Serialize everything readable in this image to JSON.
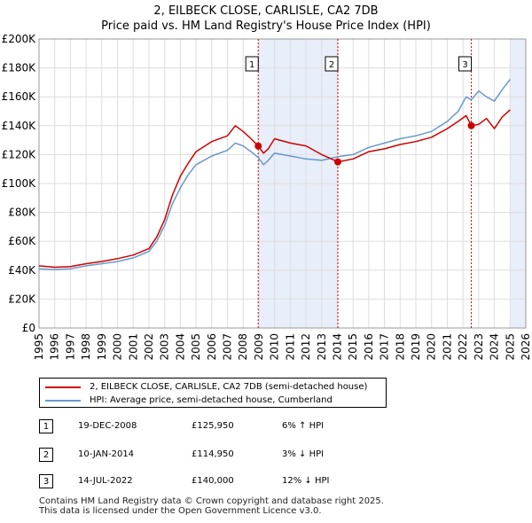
{
  "title_line1": "2, EILBECK CLOSE, CARLISLE, CA2 7DB",
  "title_line2": "Price paid vs. HM Land Registry's House Price Index (HPI)",
  "chart_data": {
    "type": "line",
    "x_ticks": [
      "1995",
      "1996",
      "1997",
      "1998",
      "1999",
      "2000",
      "2001",
      "2002",
      "2003",
      "2004",
      "2005",
      "2006",
      "2007",
      "2008",
      "2009",
      "2010",
      "2011",
      "2012",
      "2013",
      "2014",
      "2015",
      "2016",
      "2017",
      "2018",
      "2019",
      "2020",
      "2021",
      "2022",
      "2023",
      "2024",
      "2025",
      "2026"
    ],
    "y_ticks": [
      "£0",
      "£20K",
      "£40K",
      "£60K",
      "£80K",
      "£100K",
      "£120K",
      "£140K",
      "£160K",
      "£180K",
      "£200K"
    ],
    "ylim": [
      0,
      200000
    ],
    "xlim": [
      1995,
      2026
    ],
    "series": [
      {
        "name": "2, EILBECK CLOSE, CARLISLE, CA2 7DB (semi-detached house)",
        "color": "#cc0000",
        "points": [
          [
            1995.0,
            43000
          ],
          [
            1996.0,
            42000
          ],
          [
            1997.0,
            42500
          ],
          [
            1998.0,
            44500
          ],
          [
            1999.0,
            46000
          ],
          [
            2000.0,
            48000
          ],
          [
            2001.0,
            50500
          ],
          [
            2002.0,
            55000
          ],
          [
            2002.5,
            63000
          ],
          [
            2003.0,
            75000
          ],
          [
            2003.5,
            92000
          ],
          [
            2004.0,
            105000
          ],
          [
            2004.5,
            114000
          ],
          [
            2005.0,
            122000
          ],
          [
            2006.0,
            129000
          ],
          [
            2007.0,
            133000
          ],
          [
            2007.5,
            140000
          ],
          [
            2008.0,
            136000
          ],
          [
            2008.5,
            131000
          ],
          [
            2008.96,
            125950
          ],
          [
            2009.3,
            121000
          ],
          [
            2009.6,
            124000
          ],
          [
            2010.0,
            131000
          ],
          [
            2011.0,
            128000
          ],
          [
            2012.0,
            126000
          ],
          [
            2013.0,
            120000
          ],
          [
            2014.03,
            114950
          ],
          [
            2015.0,
            117000
          ],
          [
            2016.0,
            122000
          ],
          [
            2017.0,
            124000
          ],
          [
            2018.0,
            127000
          ],
          [
            2019.0,
            129000
          ],
          [
            2020.0,
            132000
          ],
          [
            2021.0,
            138000
          ],
          [
            2021.7,
            143000
          ],
          [
            2022.2,
            147000
          ],
          [
            2022.53,
            140000
          ],
          [
            2023.0,
            141000
          ],
          [
            2023.5,
            145000
          ],
          [
            2024.0,
            138000
          ],
          [
            2024.5,
            146000
          ],
          [
            2025.0,
            151000
          ]
        ]
      },
      {
        "name": "HPI: Average price, semi-detached house, Cumberland",
        "color": "#6699cc",
        "points": [
          [
            1995.0,
            41000
          ],
          [
            1996.0,
            40500
          ],
          [
            1997.0,
            41000
          ],
          [
            1998.0,
            43000
          ],
          [
            1999.0,
            44500
          ],
          [
            2000.0,
            46000
          ],
          [
            2001.0,
            48500
          ],
          [
            2002.0,
            53000
          ],
          [
            2002.5,
            60000
          ],
          [
            2003.0,
            71000
          ],
          [
            2003.5,
            86000
          ],
          [
            2004.0,
            97000
          ],
          [
            2004.5,
            106000
          ],
          [
            2005.0,
            113000
          ],
          [
            2006.0,
            119000
          ],
          [
            2007.0,
            123000
          ],
          [
            2007.5,
            128000
          ],
          [
            2008.0,
            126000
          ],
          [
            2008.5,
            122000
          ],
          [
            2008.96,
            118000
          ],
          [
            2009.3,
            113000
          ],
          [
            2009.6,
            116000
          ],
          [
            2010.0,
            121000
          ],
          [
            2011.0,
            119000
          ],
          [
            2012.0,
            117000
          ],
          [
            2013.0,
            116000
          ],
          [
            2014.03,
            118500
          ],
          [
            2015.0,
            120000
          ],
          [
            2016.0,
            125000
          ],
          [
            2017.0,
            128000
          ],
          [
            2018.0,
            131000
          ],
          [
            2019.0,
            133000
          ],
          [
            2020.0,
            136000
          ],
          [
            2021.0,
            143000
          ],
          [
            2021.7,
            150000
          ],
          [
            2022.2,
            160000
          ],
          [
            2022.53,
            158000
          ],
          [
            2023.0,
            164000
          ],
          [
            2023.5,
            160000
          ],
          [
            2024.0,
            157000
          ],
          [
            2024.5,
            165000
          ],
          [
            2025.0,
            172000
          ]
        ]
      }
    ],
    "sales": [
      {
        "label": "1",
        "x": 2008.96,
        "y": 125950
      },
      {
        "label": "2",
        "x": 2014.03,
        "y": 114950
      },
      {
        "label": "3",
        "x": 2022.53,
        "y": 140000
      }
    ],
    "shaded_ranges": [
      [
        2008.96,
        2014.03
      ],
      [
        2025.0,
        2026.0
      ]
    ]
  },
  "legend": {
    "property_label": "2, EILBECK CLOSE, CARLISLE, CA2 7DB (semi-detached house)",
    "hpi_label": "HPI: Average price, semi-detached house, Cumberland"
  },
  "sales_table": [
    {
      "num": "1",
      "date": "19-DEC-2008",
      "price": "£125,950",
      "hpi": "6% ↑ HPI"
    },
    {
      "num": "2",
      "date": "10-JAN-2014",
      "price": "£114,950",
      "hpi": "3% ↓ HPI"
    },
    {
      "num": "3",
      "date": "14-JUL-2022",
      "price": "£140,000",
      "hpi": "12% ↓ HPI"
    }
  ],
  "footer_line1": "Contains HM Land Registry data © Crown copyright and database right 2025.",
  "footer_line2": "This data is licensed under the Open Government Licence v3.0.",
  "colors": {
    "property": "#cc0000",
    "hpi": "#6699cc",
    "shade": "#e8eefa",
    "grid": "#dddddd"
  }
}
